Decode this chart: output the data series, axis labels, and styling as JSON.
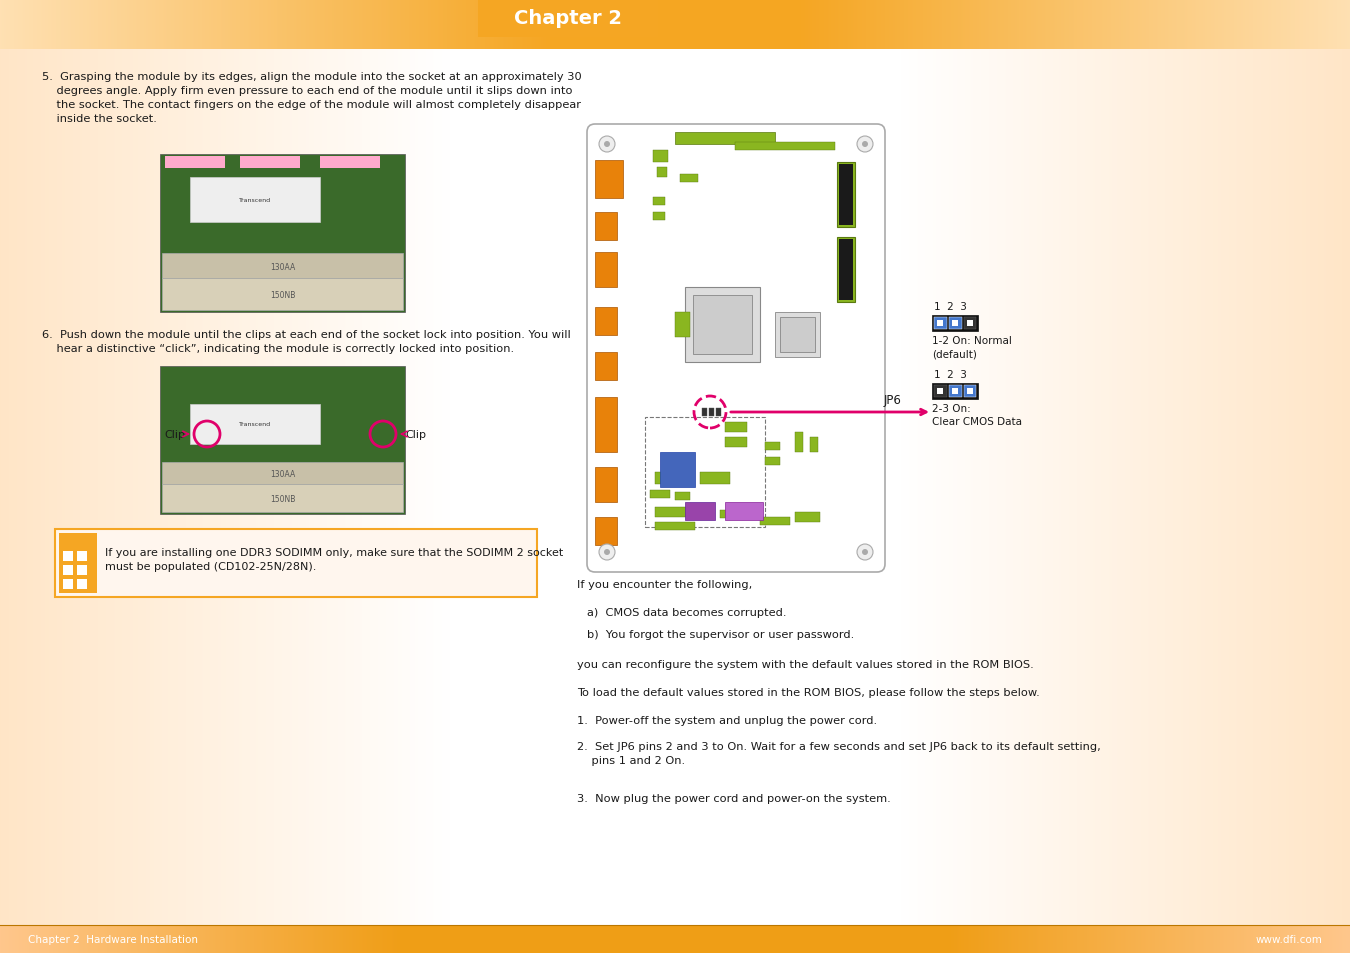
{
  "title": "Chapter 2",
  "footer_left": "Chapter 2  Hardware Installation",
  "footer_right": "www.dfi.com",
  "step5_text": "5.  Grasping the module by its edges, align the module into the socket at an approximately 30\n    degrees angle. Apply firm even pressure to each end of the module until it slips down into\n    the socket. The contact fingers on the edge of the module will almost completely disappear\n    inside the socket.",
  "step6_text": "6.  Push down the module until the clips at each end of the socket lock into position. You will\n    hear a distinctive “click”, indicating the module is correctly locked into position.",
  "clip_label": "Clip",
  "note_text": "If you are installing one DDR3 SODIMM only, make sure that the SODIMM 2 socket\nmust be populated (CD102-25N/28N).",
  "jp6_label": "JP6",
  "jp6_nums": "1  2  3",
  "jp6_desc1": "1-2 On: Normal\n(default)",
  "jp6_desc2": "2-3 On:\nClear CMOS Data",
  "right_text1": "If you encounter the following,",
  "right_text2a": "a)  CMOS data becomes corrupted.",
  "right_text2b": "b)  You forgot the supervisor or user password.",
  "right_text3": "you can reconfigure the system with the default values stored in the ROM BIOS.",
  "right_text4": "To load the default values stored in the ROM BIOS, please follow the steps below.",
  "right_step1": "1.  Power-off the system and unplug the power cord.",
  "right_step2": "2.  Set JP6 pins 2 and 3 to On. Wait for a few seconds and set JP6 back to its default setting,\n    pins 1 and 2 On.",
  "right_step3": "3.  Now plug the power cord and power-on the system.",
  "orange": "#F5A623",
  "dark_orange": "#CC8800",
  "pink": "#E0006A",
  "blue_jumper": "#4477CC",
  "dark_jumper": "#222222",
  "green_board": "#8AB620",
  "dark_green_board": "#5A7A10",
  "board_orange": "#E8820A"
}
